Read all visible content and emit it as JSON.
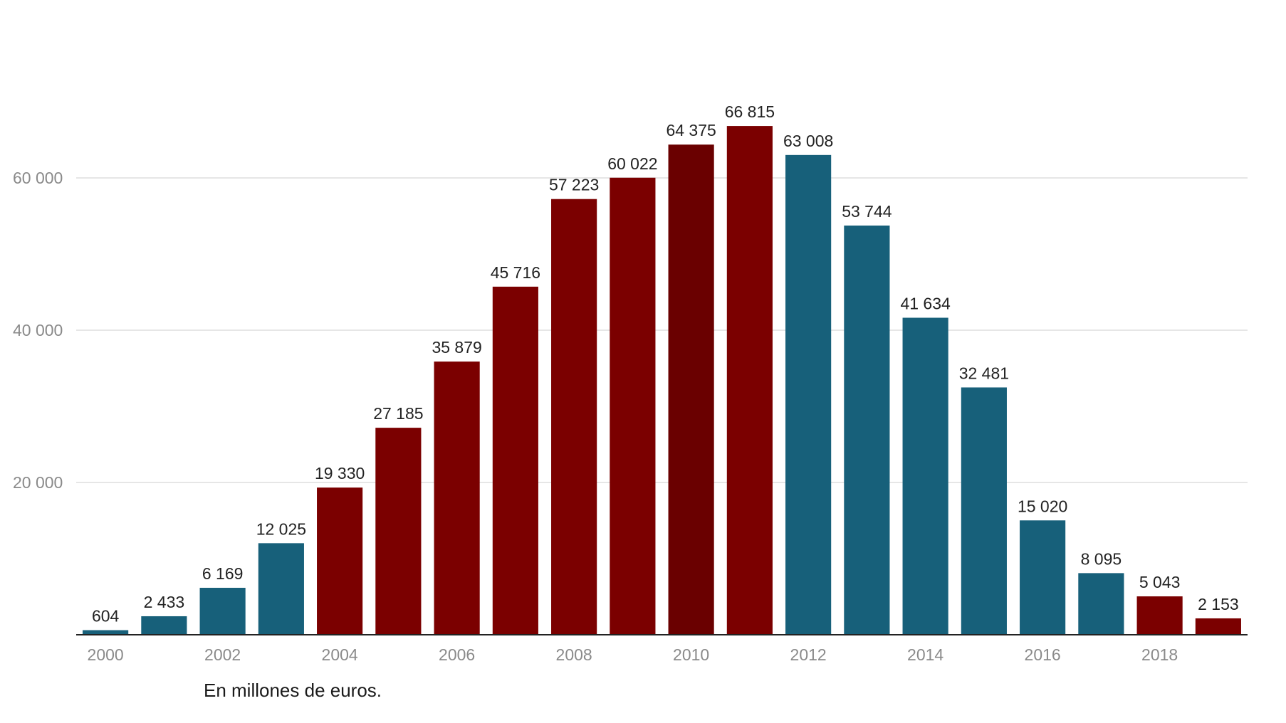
{
  "chart_data": {
    "type": "bar",
    "categories": [
      "2000",
      "2001",
      "2002",
      "2003",
      "2004",
      "2005",
      "2006",
      "2007",
      "2008",
      "2009",
      "2010",
      "2011",
      "2012",
      "2013",
      "2014",
      "2015",
      "2016",
      "2017",
      "2018",
      "2019"
    ],
    "values": [
      604,
      2433,
      6169,
      12025,
      19330,
      27185,
      35879,
      45716,
      57223,
      60022,
      64375,
      66815,
      63008,
      53744,
      41634,
      32481,
      15020,
      8095,
      5043,
      2153
    ],
    "value_labels": [
      "604",
      "2 433",
      "6 169",
      "12 025",
      "19 330",
      "27 185",
      "35 879",
      "45 716",
      "57 223",
      "60 022",
      "64 375",
      "66 815",
      "63 008",
      "53 744",
      "41 634",
      "32 481",
      "15 020",
      "8 095",
      "5 043",
      "2 153"
    ],
    "bar_colors": [
      "#17607a",
      "#17607a",
      "#17607a",
      "#17607a",
      "#7b0000",
      "#7b0000",
      "#7b0000",
      "#7b0000",
      "#7b0000",
      "#7b0000",
      "#6a0000",
      "#7b0000",
      "#17607a",
      "#17607a",
      "#17607a",
      "#17607a",
      "#17607a",
      "#17607a",
      "#7b0000",
      "#7b0000"
    ],
    "x_tick_labels": [
      "2000",
      "2002",
      "2004",
      "2006",
      "2008",
      "2010",
      "2012",
      "2014",
      "2016",
      "2018"
    ],
    "y_ticks": [
      20000,
      40000,
      60000
    ],
    "y_tick_labels": [
      "20 000",
      "40 000",
      "60 000"
    ],
    "ylim": [
      0,
      72000
    ],
    "grid": true,
    "title": "",
    "xlabel": "",
    "ylabel": ""
  },
  "note": "En millones de euros.",
  "colors": {
    "gridline": "#dddddd",
    "axis": "#222222",
    "tick_text": "#8a8a8a",
    "value_text": "#222222"
  }
}
